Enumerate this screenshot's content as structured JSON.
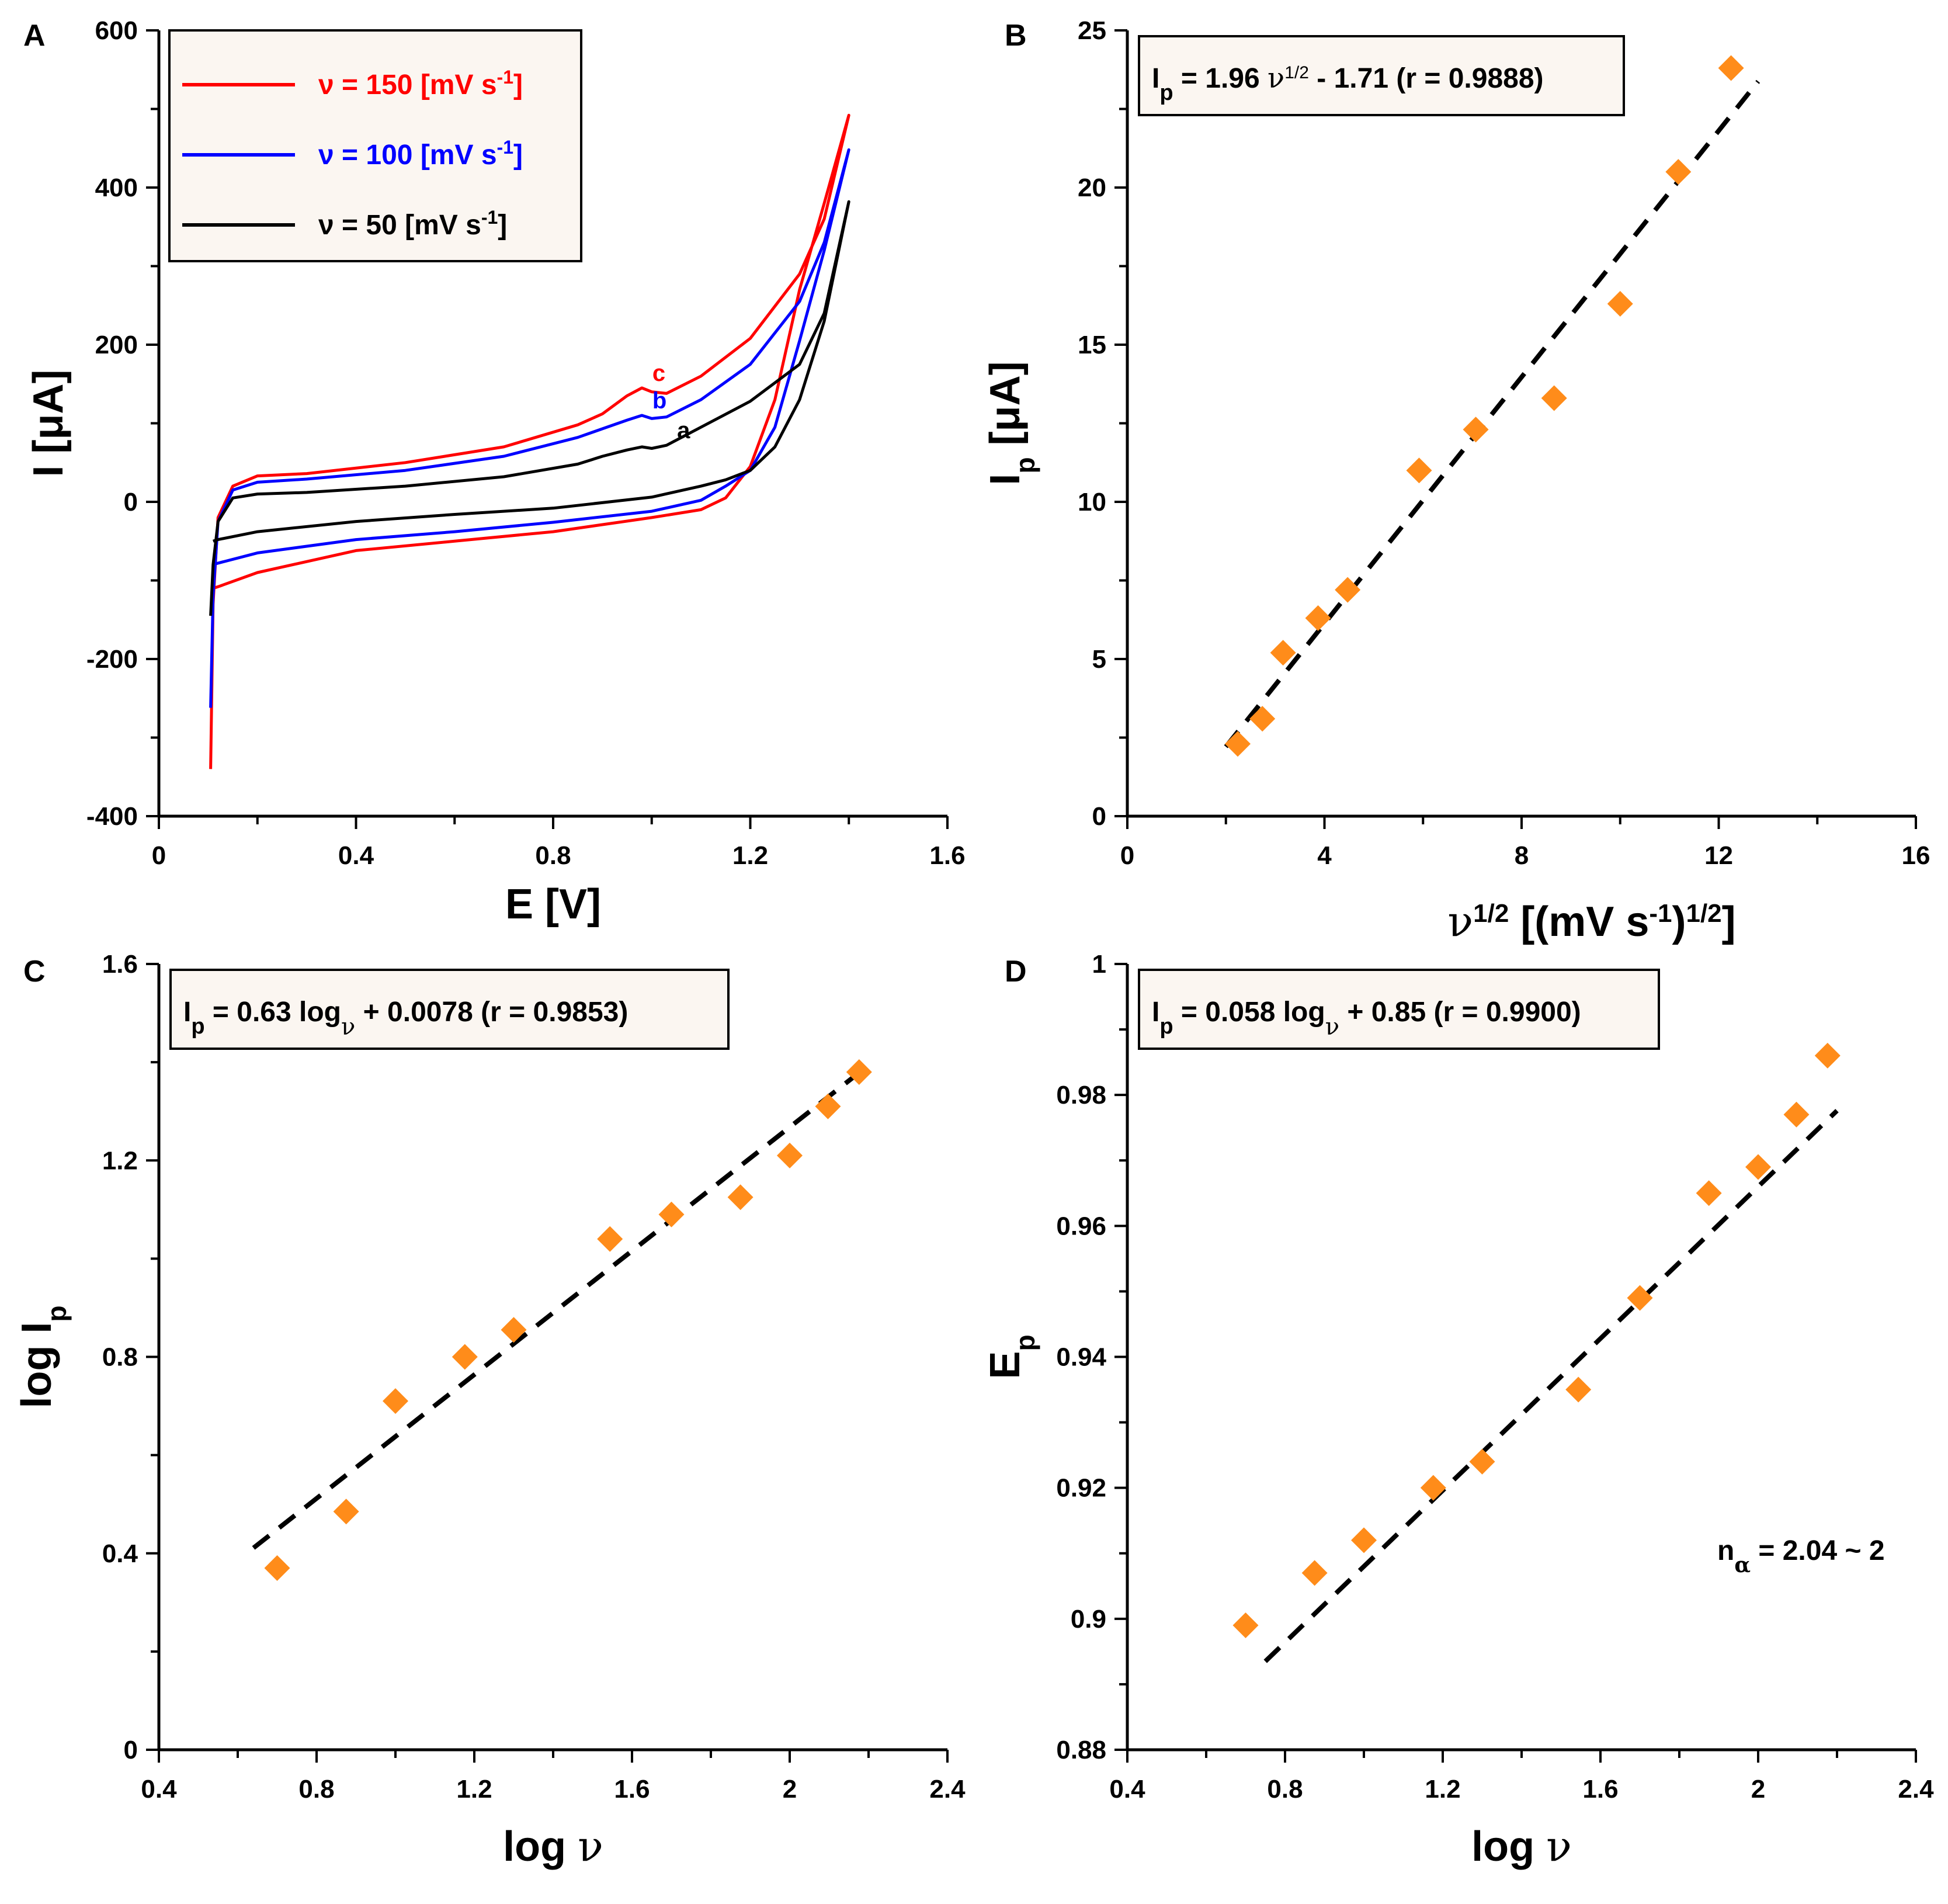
{
  "colors": {
    "red": "#ff0000",
    "blue": "#0000ff",
    "black": "#000000",
    "marker": "#ff8c1a",
    "box_fill": "#fbf6f1"
  },
  "chart_data": [
    {
      "panel": "A",
      "type": "line",
      "xlabel": "E [V]",
      "ylabel": "I [μA]",
      "xlim": [
        0,
        1.6
      ],
      "ylim": [
        -400,
        600
      ],
      "x_ticks": [
        "0",
        "0.4",
        "0.8",
        "1.2",
        "1.6"
      ],
      "y_ticks": [
        "-400",
        "-200",
        "0",
        "200",
        "400",
        "600"
      ],
      "legend_position": "top-left",
      "series": [
        {
          "name": "ν = 150 [mV s-1]",
          "legend_main": "ν = 150 [mV s",
          "legend_sup": "-1",
          "legend_end": "]",
          "color": "red",
          "peak_label": "c",
          "anodic": [
            [
              0.105,
              -340
            ],
            [
              0.11,
              -130
            ],
            [
              0.12,
              -20
            ],
            [
              0.15,
              20
            ],
            [
              0.2,
              33
            ],
            [
              0.3,
              36
            ],
            [
              0.5,
              50
            ],
            [
              0.7,
              70
            ],
            [
              0.85,
              98
            ],
            [
              0.9,
              112
            ],
            [
              0.95,
              135
            ],
            [
              0.98,
              145
            ],
            [
              1.0,
              140
            ],
            [
              1.03,
              138
            ],
            [
              1.1,
              160
            ],
            [
              1.2,
              208
            ],
            [
              1.3,
              290
            ],
            [
              1.35,
              360
            ],
            [
              1.4,
              492
            ]
          ],
          "cathodic": [
            [
              1.4,
              492
            ],
            [
              1.35,
              380
            ],
            [
              1.3,
              270
            ],
            [
              1.25,
              130
            ],
            [
              1.2,
              45
            ],
            [
              1.15,
              5
            ],
            [
              1.1,
              -10
            ],
            [
              1.0,
              -20
            ],
            [
              0.8,
              -38
            ],
            [
              0.6,
              -50
            ],
            [
              0.4,
              -62
            ],
            [
              0.2,
              -90
            ],
            [
              0.12,
              -108
            ],
            [
              0.11,
              -110
            ]
          ]
        },
        {
          "name": "ν = 100 [mV s-1]",
          "legend_main": "ν = 100 [mV s",
          "legend_sup": "-1",
          "legend_end": "]",
          "color": "blue",
          "peak_label": "b",
          "anodic": [
            [
              0.105,
              -262
            ],
            [
              0.11,
              -120
            ],
            [
              0.12,
              -25
            ],
            [
              0.15,
              15
            ],
            [
              0.2,
              25
            ],
            [
              0.3,
              29
            ],
            [
              0.5,
              40
            ],
            [
              0.7,
              58
            ],
            [
              0.85,
              82
            ],
            [
              0.9,
              93
            ],
            [
              0.95,
              104
            ],
            [
              0.98,
              110
            ],
            [
              1.0,
              106
            ],
            [
              1.03,
              108
            ],
            [
              1.1,
              130
            ],
            [
              1.2,
              175
            ],
            [
              1.3,
              255
            ],
            [
              1.35,
              330
            ],
            [
              1.4,
              448
            ]
          ],
          "cathodic": [
            [
              1.4,
              448
            ],
            [
              1.35,
              320
            ],
            [
              1.3,
              205
            ],
            [
              1.25,
              95
            ],
            [
              1.2,
              40
            ],
            [
              1.15,
              20
            ],
            [
              1.1,
              2
            ],
            [
              1.0,
              -12
            ],
            [
              0.8,
              -26
            ],
            [
              0.6,
              -38
            ],
            [
              0.4,
              -48
            ],
            [
              0.2,
              -65
            ],
            [
              0.12,
              -78
            ],
            [
              0.11,
              -80
            ]
          ]
        },
        {
          "name": "ν = 50 [mV s-1]",
          "legend_main": "ν = 50   [mV s",
          "legend_sup": "-1",
          "legend_end": "]",
          "color": "black",
          "peak_label": "a",
          "anodic": [
            [
              0.105,
              -145
            ],
            [
              0.11,
              -80
            ],
            [
              0.12,
              -25
            ],
            [
              0.15,
              5
            ],
            [
              0.2,
              10
            ],
            [
              0.3,
              12
            ],
            [
              0.5,
              20
            ],
            [
              0.7,
              32
            ],
            [
              0.85,
              48
            ],
            [
              0.9,
              58
            ],
            [
              0.95,
              66
            ],
            [
              0.98,
              70
            ],
            [
              1.0,
              68
            ],
            [
              1.03,
              72
            ],
            [
              1.1,
              95
            ],
            [
              1.2,
              128
            ],
            [
              1.3,
              175
            ],
            [
              1.35,
              240
            ],
            [
              1.4,
              382
            ]
          ],
          "cathodic": [
            [
              1.4,
              382
            ],
            [
              1.35,
              230
            ],
            [
              1.3,
              130
            ],
            [
              1.25,
              70
            ],
            [
              1.2,
              40
            ],
            [
              1.15,
              28
            ],
            [
              1.1,
              20
            ],
            [
              1.0,
              6
            ],
            [
              0.8,
              -8
            ],
            [
              0.6,
              -16
            ],
            [
              0.4,
              -25
            ],
            [
              0.2,
              -38
            ],
            [
              0.12,
              -48
            ],
            [
              0.11,
              -50
            ]
          ]
        }
      ]
    },
    {
      "panel": "B",
      "type": "scatter",
      "xlabel_main": "ν",
      "xlabel_sup": "1/2",
      "xlabel_mid": " [(mV s",
      "xlabel_sup2": "-1",
      "xlabel_end": ")",
      "xlabel_sup3": "1/2",
      "xlabel_close": "]",
      "ylabel_main": "I",
      "ylabel_sub": "p",
      "ylabel_end": " [μA]",
      "xlim": [
        0,
        16
      ],
      "ylim": [
        0,
        25
      ],
      "x_ticks": [
        "0",
        "4",
        "8",
        "12",
        "16"
      ],
      "y_ticks": [
        "0",
        "5",
        "10",
        "15",
        "20",
        "25"
      ],
      "equation": {
        "prefix": "I",
        "sub": "p",
        "body": " = 1.96 ",
        "nu": "ν",
        "sup": "1/2",
        "tail": " - 1.71 (r = 0.9888)"
      },
      "points": [
        [
          2.24,
          2.3
        ],
        [
          2.74,
          3.1
        ],
        [
          3.16,
          5.2
        ],
        [
          3.87,
          6.3
        ],
        [
          4.47,
          7.2
        ],
        [
          5.92,
          11.0
        ],
        [
          7.07,
          12.3
        ],
        [
          8.66,
          13.3
        ],
        [
          10.0,
          16.3
        ],
        [
          11.18,
          20.5
        ],
        [
          12.25,
          23.8
        ]
      ],
      "fit": {
        "slope": 1.96,
        "intercept": -1.71,
        "x_range": [
          2.0,
          12.8
        ]
      }
    },
    {
      "panel": "C",
      "type": "scatter",
      "xlabel": "log ν",
      "ylabel_main": "log I",
      "ylabel_sub": "p",
      "xlim": [
        0.4,
        2.4
      ],
      "ylim": [
        0,
        1.6
      ],
      "x_ticks": [
        "0.4",
        "0.8",
        "1.2",
        "1.6",
        "2",
        "2.4"
      ],
      "y_ticks": [
        "0",
        "0.4",
        "0.8",
        "1.2",
        "1.6"
      ],
      "equation": {
        "prefix": "I",
        "sub": "p",
        "body": " = 0.63 log",
        "nu_sub": "ν",
        "tail": " + 0.0078 (r = 0.9853)"
      },
      "points": [
        [
          0.7,
          0.37
        ],
        [
          0.875,
          0.485
        ],
        [
          1.0,
          0.71
        ],
        [
          1.176,
          0.8
        ],
        [
          1.3,
          0.855
        ],
        [
          1.544,
          1.04
        ],
        [
          1.7,
          1.09
        ],
        [
          1.875,
          1.125
        ],
        [
          2.0,
          1.21
        ],
        [
          2.097,
          1.31
        ],
        [
          2.176,
          1.38
        ]
      ],
      "fit": {
        "slope": 0.63,
        "intercept": 0.0078,
        "x_range": [
          0.64,
          2.18
        ]
      }
    },
    {
      "panel": "D",
      "type": "scatter",
      "xlabel": "log ν",
      "ylabel_main": "E",
      "ylabel_sub": "p",
      "xlim": [
        0.4,
        2.4
      ],
      "ylim": [
        0.88,
        1.0
      ],
      "x_ticks": [
        "0.4",
        "0.8",
        "1.2",
        "1.6",
        "2",
        "2.4"
      ],
      "y_ticks": [
        "0.88",
        "0.9",
        "0.92",
        "0.94",
        "0.96",
        "0.98",
        "1"
      ],
      "equation": {
        "prefix": "I",
        "sub": "p",
        "body": " = 0.058 log",
        "nu_sub": "ν",
        "tail": " + 0.85 (r = 0.9900)"
      },
      "annotation": {
        "main": "n",
        "sub": "α",
        "tail": " = 2.04 ~ 2"
      },
      "points": [
        [
          0.7,
          0.899
        ],
        [
          0.875,
          0.907
        ],
        [
          1.0,
          0.912
        ],
        [
          1.176,
          0.92
        ],
        [
          1.3,
          0.924
        ],
        [
          1.544,
          0.935
        ],
        [
          1.7,
          0.949
        ],
        [
          1.875,
          0.965
        ],
        [
          2.0,
          0.969
        ],
        [
          2.097,
          0.977
        ],
        [
          2.176,
          0.986
        ]
      ],
      "fit": {
        "slope": 0.058,
        "intercept": 0.85,
        "x_range": [
          0.75,
          2.2
        ]
      }
    }
  ]
}
